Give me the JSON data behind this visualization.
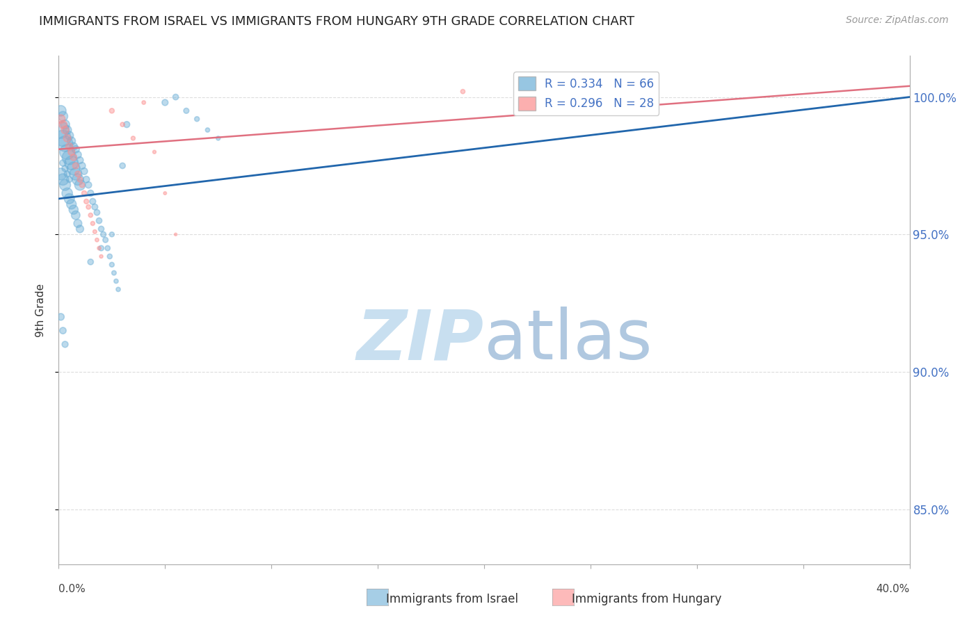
{
  "title": "IMMIGRANTS FROM ISRAEL VS IMMIGRANTS FROM HUNGARY 9TH GRADE CORRELATION CHART",
  "source": "Source: ZipAtlas.com",
  "ylabel": "9th Grade",
  "y_tick_labels": [
    "85.0%",
    "90.0%",
    "95.0%",
    "100.0%"
  ],
  "y_ticks": [
    85.0,
    90.0,
    95.0,
    100.0
  ],
  "legend_israel": "Immigrants from Israel",
  "legend_hungary": "Immigrants from Hungary",
  "R_israel": 0.334,
  "N_israel": 66,
  "R_hungary": 0.296,
  "N_hungary": 28,
  "color_israel": "#6baed6",
  "color_hungary": "#fc8d8d",
  "line_color_israel": "#2166ac",
  "line_color_hungary": "#e07080",
  "watermark_zip": "ZIP",
  "watermark_atlas": "atlas",
  "watermark_color_zip": "#c8dff0",
  "watermark_color_atlas": "#b0c8e0",
  "israel_x": [
    0.001,
    0.002,
    0.003,
    0.004,
    0.005,
    0.006,
    0.007,
    0.008,
    0.009,
    0.01,
    0.011,
    0.012,
    0.013,
    0.014,
    0.015,
    0.016,
    0.017,
    0.018,
    0.019,
    0.02,
    0.021,
    0.022,
    0.023,
    0.024,
    0.025,
    0.026,
    0.027,
    0.028,
    0.03,
    0.032,
    0.001,
    0.002,
    0.003,
    0.004,
    0.005,
    0.006,
    0.007,
    0.008,
    0.009,
    0.01,
    0.001,
    0.002,
    0.003,
    0.004,
    0.005,
    0.006,
    0.007,
    0.008,
    0.009,
    0.01,
    0.05,
    0.055,
    0.06,
    0.065,
    0.07,
    0.075,
    0.002,
    0.003,
    0.004,
    0.005,
    0.001,
    0.002,
    0.003,
    0.015,
    0.02,
    0.025
  ],
  "israel_y": [
    99.5,
    99.3,
    99.0,
    98.8,
    98.6,
    98.4,
    98.2,
    98.1,
    97.9,
    97.7,
    97.5,
    97.3,
    97.0,
    96.8,
    96.5,
    96.2,
    96.0,
    95.8,
    95.5,
    95.2,
    95.0,
    94.8,
    94.5,
    94.2,
    93.9,
    93.6,
    93.3,
    93.0,
    97.5,
    99.0,
    98.8,
    98.5,
    98.3,
    98.0,
    97.8,
    97.6,
    97.4,
    97.2,
    97.0,
    96.8,
    97.2,
    97.0,
    96.8,
    96.5,
    96.3,
    96.1,
    95.9,
    95.7,
    95.4,
    95.2,
    99.8,
    100.0,
    99.5,
    99.2,
    98.8,
    98.5,
    97.6,
    97.4,
    97.2,
    97.0,
    92.0,
    91.5,
    91.0,
    94.0,
    94.5,
    95.0
  ],
  "israel_size": [
    120,
    100,
    90,
    80,
    75,
    70,
    65,
    60,
    55,
    50,
    50,
    48,
    46,
    44,
    42,
    40,
    38,
    36,
    35,
    34,
    32,
    30,
    28,
    26,
    24,
    22,
    20,
    20,
    35,
    40,
    300,
    280,
    260,
    240,
    220,
    200,
    180,
    160,
    140,
    120,
    150,
    140,
    130,
    120,
    110,
    100,
    90,
    80,
    70,
    60,
    40,
    35,
    30,
    25,
    20,
    18,
    45,
    42,
    40,
    38,
    50,
    45,
    40,
    35,
    30,
    25
  ],
  "hungary_x": [
    0.001,
    0.002,
    0.003,
    0.004,
    0.005,
    0.006,
    0.007,
    0.008,
    0.009,
    0.01,
    0.011,
    0.012,
    0.013,
    0.014,
    0.015,
    0.016,
    0.017,
    0.018,
    0.019,
    0.02,
    0.025,
    0.03,
    0.035,
    0.04,
    0.045,
    0.05,
    0.055,
    0.19
  ],
  "hungary_y": [
    99.2,
    99.0,
    98.8,
    98.5,
    98.2,
    98.0,
    97.8,
    97.5,
    97.2,
    97.0,
    96.8,
    96.5,
    96.2,
    96.0,
    95.7,
    95.4,
    95.1,
    94.8,
    94.5,
    94.2,
    99.5,
    99.0,
    98.5,
    99.8,
    98.0,
    96.5,
    95.0,
    100.2
  ],
  "hungary_size": [
    80,
    70,
    65,
    60,
    55,
    50,
    45,
    40,
    35,
    30,
    28,
    26,
    24,
    22,
    20,
    18,
    16,
    15,
    14,
    13,
    25,
    20,
    18,
    15,
    12,
    10,
    8,
    20
  ],
  "xmin": 0.0,
  "xmax": 0.4,
  "ymin": 83.0,
  "ymax": 101.5,
  "grid_color": "#dddddd",
  "background": "#ffffff",
  "israel_line_x0": 0.0,
  "israel_line_x1": 0.4,
  "israel_line_y0": 96.3,
  "israel_line_y1": 100.0,
  "hungary_line_x0": 0.0,
  "hungary_line_x1": 0.4,
  "hungary_line_y0": 98.1,
  "hungary_line_y1": 100.4
}
